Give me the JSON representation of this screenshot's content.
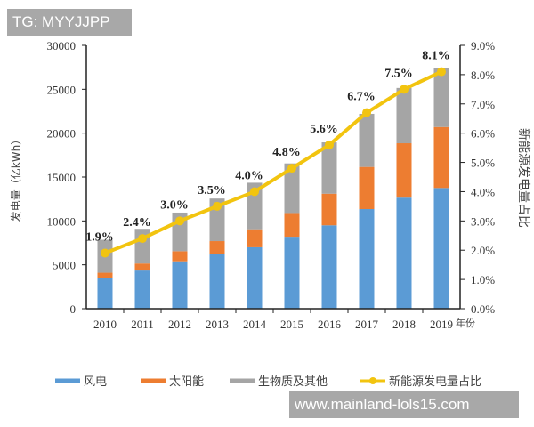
{
  "watermarks": {
    "top": "TG: MYYJJPP",
    "bottom": "www.mainland-lols15.com"
  },
  "chart_data": {
    "type": "bar",
    "stacked": true,
    "categories": [
      "2010",
      "2011",
      "2012",
      "2013",
      "2014",
      "2015",
      "2016",
      "2017",
      "2018",
      "2019"
    ],
    "xlabel": "年份",
    "ylabel": "发电量（亿kWh）",
    "ylabel_right": "新能源发电量占比",
    "ylim": [
      0,
      30000
    ],
    "yticks": [
      0,
      5000,
      10000,
      15000,
      20000,
      25000,
      30000
    ],
    "ylim_right": [
      0,
      9.0
    ],
    "yticks_right": [
      "0.0%",
      "1.0%",
      "2.0%",
      "3.0%",
      "4.0%",
      "5.0%",
      "6.0%",
      "7.0%",
      "8.0%",
      "9.0%"
    ],
    "grid": false,
    "legend_position": "bottom",
    "series": [
      {
        "name": "风电",
        "type": "bar",
        "color": "#5b9bd5",
        "values": [
          3450,
          4350,
          5400,
          6250,
          7000,
          8200,
          9500,
          11350,
          12650,
          13750
        ]
      },
      {
        "name": "太阳能",
        "type": "bar",
        "color": "#ed7d31",
        "values": [
          650,
          800,
          1150,
          1450,
          2050,
          2700,
          3600,
          4800,
          6200,
          6950
        ]
      },
      {
        "name": "生物质及其他",
        "type": "bar",
        "color": "#a5a5a5",
        "values": [
          3750,
          3950,
          4400,
          4850,
          5300,
          5650,
          5850,
          6050,
          6300,
          6750
        ]
      },
      {
        "name": "新能源发电量占比",
        "type": "line",
        "axis": "right",
        "color": "#f2c40f",
        "values": [
          1.9,
          2.4,
          3.0,
          3.5,
          4.0,
          4.8,
          5.6,
          6.7,
          7.5,
          8.1
        ],
        "labels": [
          "1.9%",
          "2.4%",
          "3.0%",
          "3.5%",
          "4.0%",
          "4.8%",
          "5.6%",
          "6.7%",
          "7.5%",
          "8.1%"
        ]
      }
    ]
  }
}
